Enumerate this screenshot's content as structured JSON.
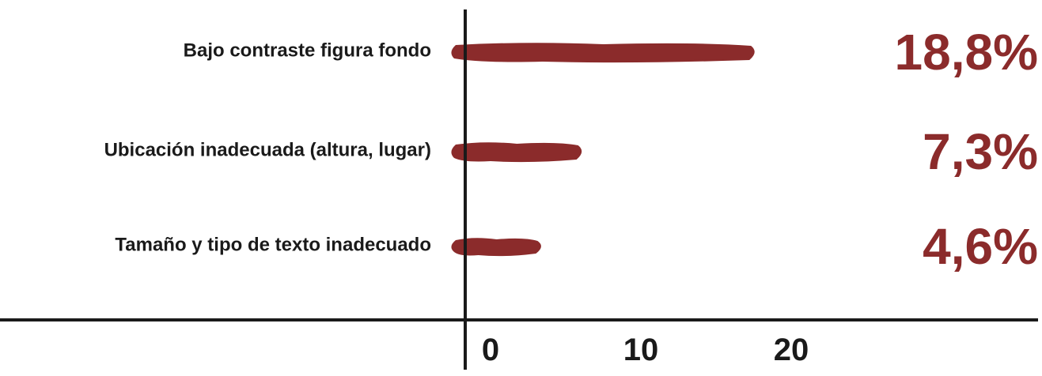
{
  "chart_data": {
    "type": "bar",
    "orientation": "horizontal",
    "categories": [
      "Bajo contraste figura fondo",
      "Ubicación inadecuada (altura, lugar)",
      "Tamaño y tipo de texto inadecuado"
    ],
    "values": [
      18.8,
      7.3,
      4.6
    ],
    "value_labels": [
      "18,8%",
      "7,3%",
      "4,6%"
    ],
    "x_ticks": [
      "0",
      "10",
      "20"
    ],
    "x_tick_values": [
      0,
      10,
      20
    ],
    "xlim": [
      0,
      20
    ],
    "title": "",
    "xlabel": "",
    "ylabel": "",
    "grid": false,
    "legend": "none",
    "colors": {
      "bar": "#8b2b2b",
      "value_label": "#8b2b2b",
      "axis": "#1a1a1a",
      "text": "#1a1a1a"
    }
  }
}
